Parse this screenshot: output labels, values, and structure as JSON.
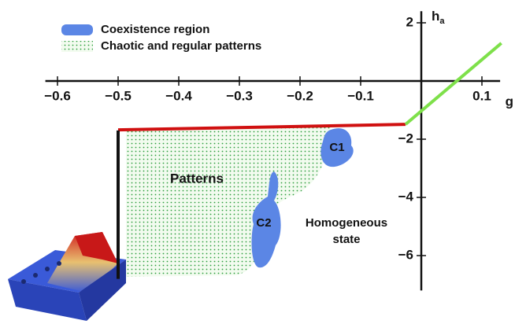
{
  "chart_data": {
    "type": "line",
    "x_label": "g",
    "y_label": "h",
    "y_label_sub": "a",
    "legend": [
      {
        "name": "Coexistence region",
        "color": "#5b86e5"
      },
      {
        "name": "Chaotic and regular patterns",
        "color": "#2e9e3e"
      }
    ],
    "annotations": [
      "Patterns",
      "C1",
      "C2",
      "Homogeneous",
      "state"
    ],
    "series": [
      {
        "color": "#d01010",
        "x": [
          -0.5,
          -0.026
        ],
        "values": [
          -1.68,
          -1.49
        ]
      },
      {
        "color": "#7ee04a",
        "x": [
          -0.026,
          0.132
        ],
        "values": [
          -1.49,
          1.3
        ]
      },
      {
        "color": "#111111",
        "x": [
          -0.5,
          -0.5
        ],
        "values": [
          -1.7,
          -6.8
        ]
      }
    ],
    "xlim": [
      -0.62,
      0.13
    ],
    "ylim": [
      -7.2,
      2.4
    ],
    "xticks": [
      {
        "value": -0.6,
        "label": "−0.6"
      },
      {
        "value": -0.5,
        "label": "−0.5"
      },
      {
        "value": -0.4,
        "label": "−0.4"
      },
      {
        "value": -0.3,
        "label": "−0.3"
      },
      {
        "value": -0.2,
        "label": "−0.2"
      },
      {
        "value": -0.1,
        "label": "−0.1"
      },
      0.1
    ],
    "yticks": [
      2,
      {
        "value": -2,
        "label": "−2"
      },
      {
        "value": -4,
        "label": "−4"
      },
      {
        "value": -6,
        "label": "−6"
      }
    ]
  }
}
